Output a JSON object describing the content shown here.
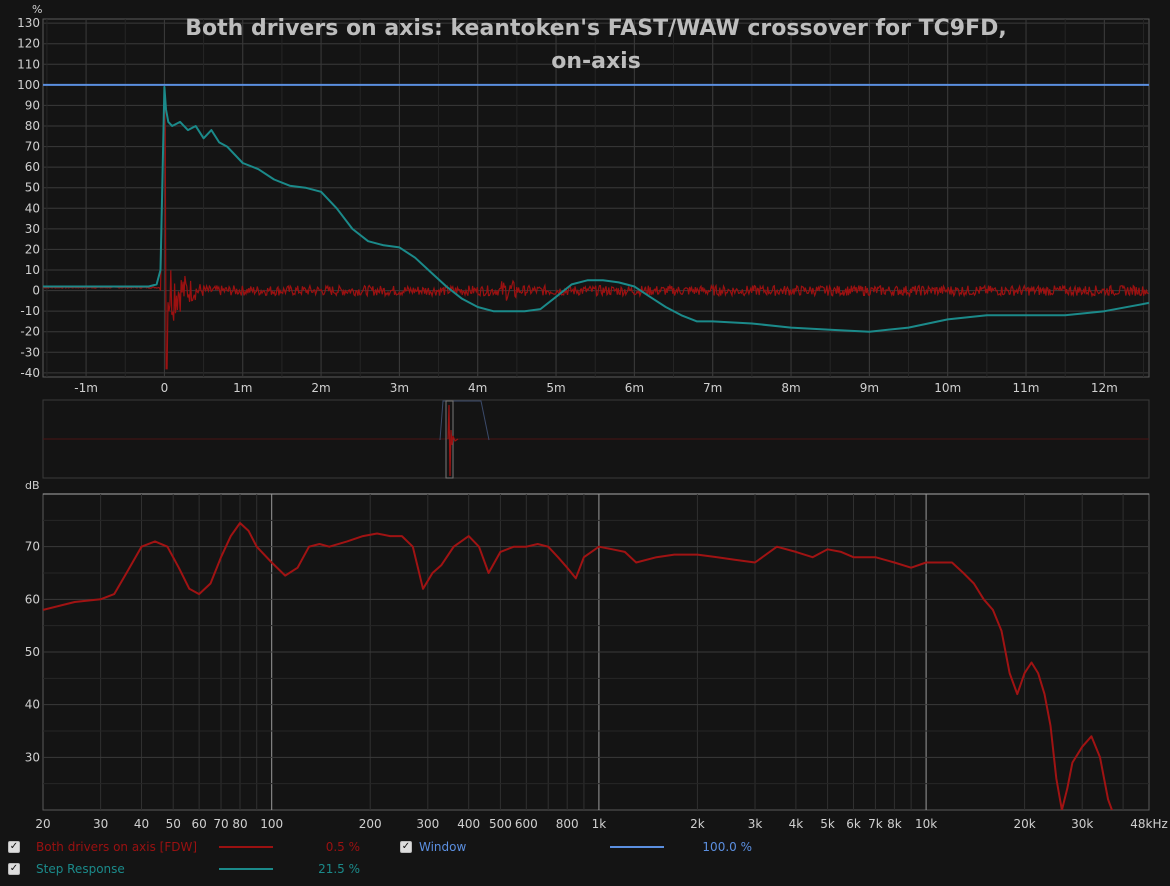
{
  "title_line1": "Both drivers on axis: keantoken's FAST/WAW crossover for TC9FD,",
  "title_line2": "on-axis",
  "colors": {
    "background": "#141414",
    "impulse": "#9b1111",
    "step": "#1b8a8a",
    "window": "#5b8fe0",
    "grid": "#3a3a3a"
  },
  "chart_data": [
    {
      "type": "line",
      "name": "impulse_step_view",
      "ylabel": "%",
      "y_ticks": [
        130,
        120,
        110,
        100,
        90,
        80,
        70,
        60,
        50,
        40,
        30,
        20,
        10,
        0,
        -10,
        -20,
        -30,
        -40
      ],
      "ylim": [
        -42,
        132
      ],
      "x_ticks_ms": [
        -1,
        0,
        1,
        2,
        3,
        4,
        5,
        6,
        7,
        8,
        9,
        10,
        11,
        12
      ],
      "x_tick_labels": [
        "-1m",
        "0",
        "1m",
        "2m",
        "3m",
        "4m",
        "5m",
        "6m",
        "7m",
        "8m",
        "9m",
        "10m",
        "11m",
        "12m"
      ],
      "xlim_ms": [
        -1.55,
        12.57
      ],
      "series": [
        {
          "name": "Window",
          "x": [
            -1.55,
            12.57
          ],
          "y": [
            100,
            100
          ]
        },
        {
          "name": "Step Response",
          "x": [
            -1.55,
            -0.2,
            -0.1,
            -0.05,
            0.0,
            0.02,
            0.05,
            0.1,
            0.2,
            0.3,
            0.4,
            0.5,
            0.6,
            0.7,
            0.8,
            1.0,
            1.2,
            1.4,
            1.6,
            1.8,
            2.0,
            2.2,
            2.4,
            2.6,
            2.8,
            3.0,
            3.2,
            3.4,
            3.6,
            3.8,
            4.0,
            4.2,
            4.4,
            4.6,
            4.8,
            5.0,
            5.2,
            5.4,
            5.6,
            5.8,
            6.0,
            6.2,
            6.4,
            6.6,
            6.8,
            7.0,
            7.5,
            8.0,
            8.5,
            9.0,
            9.5,
            10.0,
            10.5,
            11.0,
            11.5,
            12.0,
            12.57
          ],
          "y": [
            2,
            2,
            3,
            10,
            99,
            88,
            82,
            80,
            82,
            78,
            80,
            74,
            78,
            72,
            70,
            62,
            59,
            54,
            51,
            50,
            48,
            40,
            30,
            24,
            22,
            21,
            16,
            9,
            2,
            -4,
            -8,
            -10,
            -10,
            -10,
            -9,
            -3,
            3,
            5,
            5,
            4,
            2,
            -3,
            -8,
            -12,
            -15,
            -15,
            -16,
            -18,
            -19,
            -20,
            -18,
            -14,
            -12,
            -12,
            -12,
            -10,
            -6
          ]
        },
        {
          "name": "Both drivers on axis [FDW]",
          "note": "impulse oscillates near 0 with peak 99 at 0 ms and trough about -38 just after",
          "peak": 99,
          "trough": -38
        }
      ]
    },
    {
      "type": "line",
      "name": "window_overview",
      "note": "compressed overview of impulse and window around t=0"
    },
    {
      "type": "line",
      "name": "frequency_response",
      "ylabel": "dB",
      "y_ticks": [
        70,
        60,
        50,
        40,
        30
      ],
      "ylim": [
        20,
        80
      ],
      "x_scale": "log",
      "xlim": [
        20,
        48000
      ],
      "x_ticks": [
        20,
        30,
        40,
        50,
        60,
        70,
        80,
        100,
        200,
        300,
        400,
        500,
        600,
        800,
        1000,
        2000,
        3000,
        4000,
        5000,
        6000,
        7000,
        8000,
        10000,
        20000,
        30000,
        48000
      ],
      "x_tick_labels": [
        "20",
        "30",
        "40",
        "50",
        "60",
        "70",
        "80",
        "100",
        "200",
        "300",
        "400",
        "500",
        "600",
        "800",
        "1k",
        "2k",
        "3k",
        "4k",
        "5k",
        "6k",
        "7k",
        "8k",
        "10k",
        "20k",
        "30k",
        "48kHz"
      ],
      "series": [
        {
          "name": "Both drivers on axis [FDW]",
          "x": [
            20,
            25,
            30,
            33,
            36,
            40,
            44,
            48,
            52,
            56,
            60,
            65,
            70,
            75,
            80,
            85,
            90,
            100,
            110,
            120,
            130,
            140,
            150,
            170,
            190,
            210,
            230,
            250,
            270,
            290,
            310,
            330,
            360,
            400,
            430,
            460,
            500,
            550,
            600,
            650,
            700,
            750,
            800,
            850,
            900,
            1000,
            1100,
            1200,
            1300,
            1500,
            1700,
            2000,
            2300,
            2600,
            3000,
            3500,
            4000,
            4500,
            5000,
            5500,
            6000,
            6500,
            7000,
            8000,
            9000,
            10000,
            11000,
            12000,
            13000,
            14000,
            15000,
            16000,
            17000,
            18000,
            19000,
            20000,
            21000,
            22000,
            23000,
            24000,
            25000,
            26000,
            27000,
            28000,
            30000,
            32000,
            34000,
            36000,
            38000,
            40000
          ],
          "y": [
            58,
            59.5,
            60,
            61,
            65,
            70,
            71,
            70,
            66,
            62,
            61,
            63,
            68,
            72,
            74.5,
            73,
            70,
            67,
            64.5,
            66,
            70,
            70.5,
            70,
            71,
            72,
            72.5,
            72,
            72,
            70,
            62,
            65,
            66.5,
            70,
            72,
            70,
            65,
            69,
            70,
            70,
            70.5,
            70,
            68,
            66,
            64,
            68,
            70,
            69.5,
            69,
            67,
            68,
            68.5,
            68.5,
            68,
            67.5,
            67,
            70,
            69,
            68,
            69.5,
            69,
            68,
            68,
            68,
            67,
            66,
            67,
            67,
            67,
            65,
            63,
            60,
            58,
            54,
            46,
            42,
            46,
            48,
            46,
            42,
            36,
            26,
            20,
            24,
            29,
            32,
            34,
            30,
            22,
            18,
            16
          ]
        }
      ]
    }
  ],
  "legend": [
    {
      "label": "Both drivers on axis [FDW]",
      "value": "0.5 %",
      "color": "#9b1111",
      "checked": "✓"
    },
    {
      "label": "Window",
      "value": "100.0 %",
      "color": "#5b8fe0",
      "checked": "✓"
    },
    {
      "label": "Step Response",
      "value": "21.5 %",
      "color": "#1b8a8a",
      "checked": "✓"
    }
  ]
}
